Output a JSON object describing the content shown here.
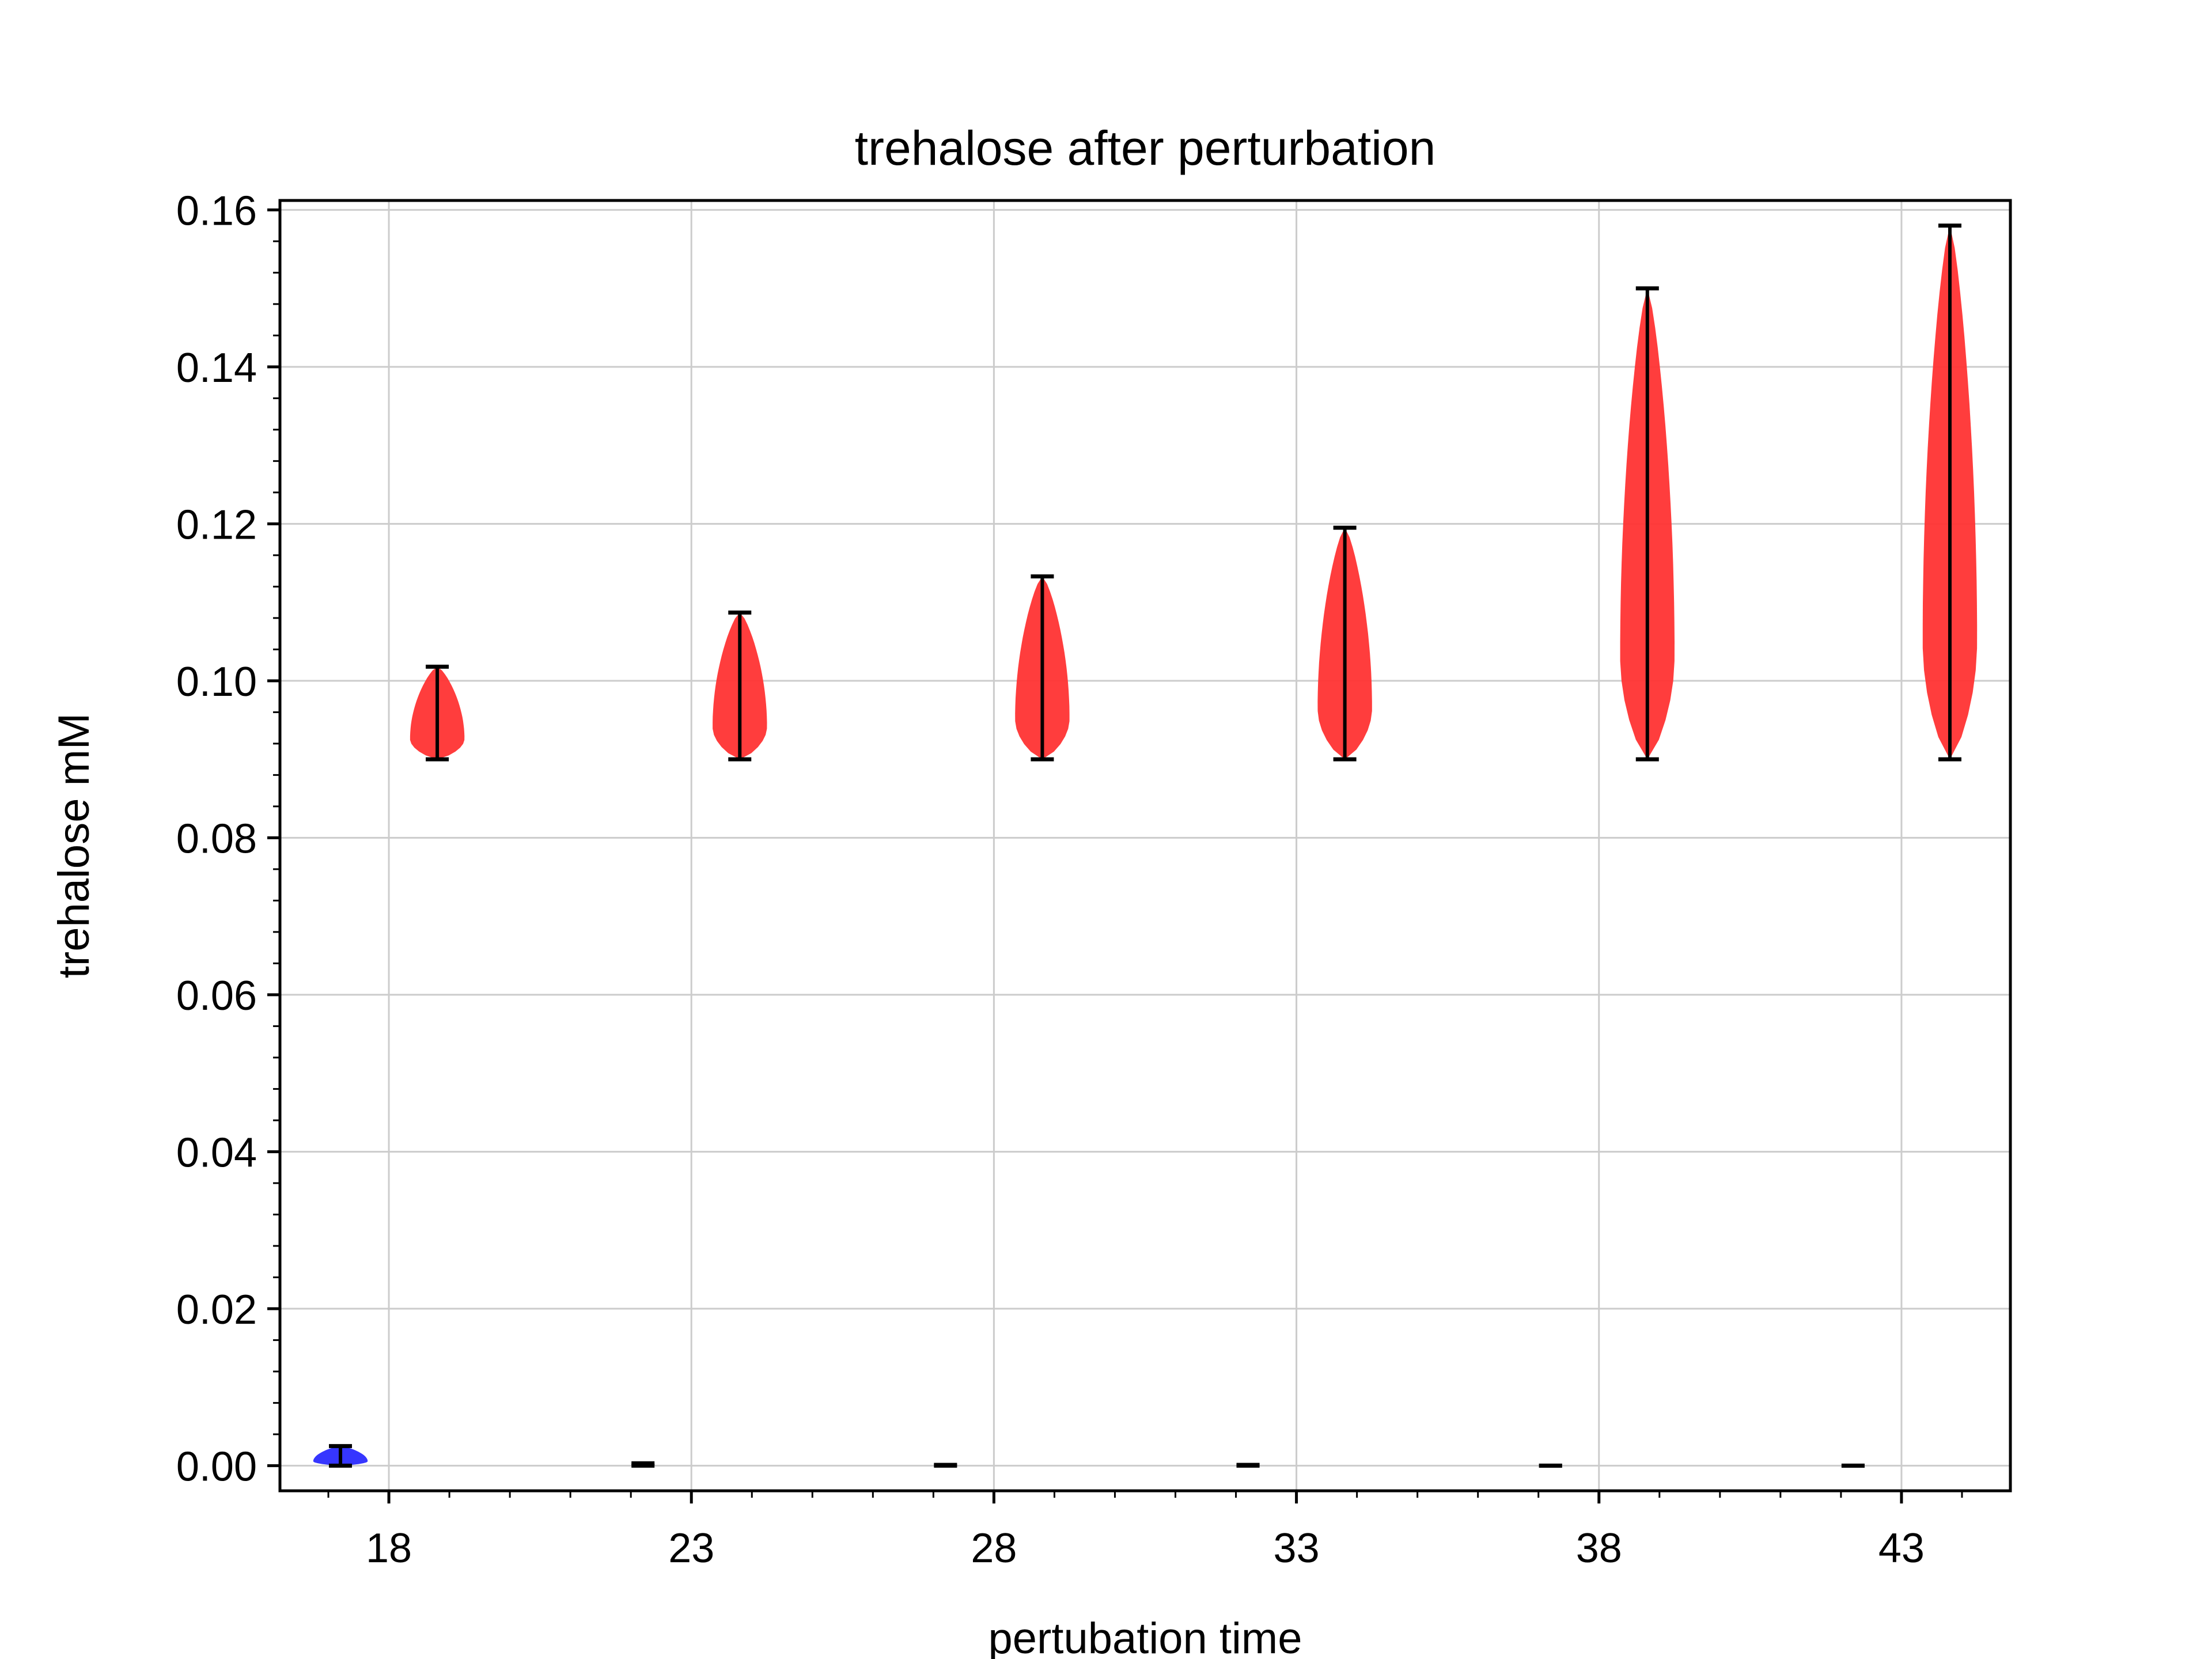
{
  "chart_data": {
    "type": "violin",
    "title": "trehalose after perturbation",
    "xlabel": "pertubation time",
    "ylabel": "trehalose mM",
    "xlim": [
      16.2,
      44.8
    ],
    "ylim": [
      -0.0032,
      0.1612
    ],
    "x_ticks": [
      18,
      23,
      28,
      33,
      38,
      43
    ],
    "x_tick_labels": [
      "18",
      "23",
      "28",
      "33",
      "38",
      "43"
    ],
    "y_ticks": [
      0.0,
      0.02,
      0.04,
      0.06,
      0.08,
      0.1,
      0.12,
      0.14,
      0.16
    ],
    "y_tick_labels": [
      "0.00",
      "0.02",
      "0.04",
      "0.06",
      "0.08",
      "0.10",
      "0.12",
      "0.14",
      "0.16"
    ],
    "grid": true,
    "series": [
      {
        "color": "#2b2bff",
        "violins": [
          {
            "x": 17.2,
            "min": 0.0,
            "max": 0.0025
          },
          {
            "x": 22.2,
            "min": 0.0,
            "max": 0.0003
          },
          {
            "x": 27.2,
            "min": 0.0,
            "max": 0.0001
          },
          {
            "x": 32.2,
            "min": 0.0,
            "max": 0.0001
          },
          {
            "x": 37.2,
            "min": 0.0,
            "max": 0.0
          },
          {
            "x": 42.2,
            "min": 0.0,
            "max": 0.0
          }
        ]
      },
      {
        "color": "#ff3333",
        "violins": [
          {
            "x": 18.8,
            "min": 0.09,
            "max": 0.1018
          },
          {
            "x": 23.8,
            "min": 0.09,
            "max": 0.1087
          },
          {
            "x": 28.8,
            "min": 0.09,
            "max": 0.1133
          },
          {
            "x": 33.8,
            "min": 0.09,
            "max": 0.1195
          },
          {
            "x": 38.8,
            "min": 0.09,
            "max": 0.15
          },
          {
            "x": 43.8,
            "min": 0.09,
            "max": 0.158
          }
        ]
      }
    ]
  }
}
